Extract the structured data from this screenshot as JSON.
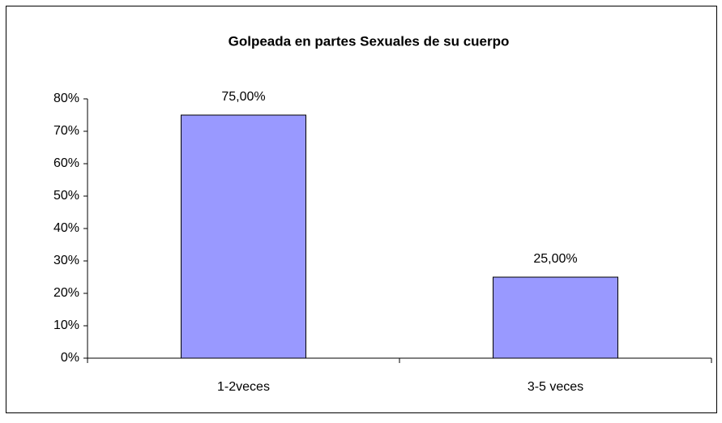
{
  "chart_data": {
    "type": "bar",
    "title": "Golpeada en partes Sexuales de su cuerpo",
    "categories": [
      "1-2veces",
      "3-5 veces"
    ],
    "values": [
      75,
      25
    ],
    "value_labels": [
      "75,00%",
      "25,00%"
    ],
    "color": "#9999ff",
    "ylim": [
      0,
      80
    ],
    "yticks": [
      {
        "value": 0,
        "label": "0%"
      },
      {
        "value": 10,
        "label": "10%"
      },
      {
        "value": 20,
        "label": "20%"
      },
      {
        "value": 30,
        "label": "30%"
      },
      {
        "value": 40,
        "label": "40%"
      },
      {
        "value": 50,
        "label": "50%"
      },
      {
        "value": 60,
        "label": "60%"
      },
      {
        "value": 70,
        "label": "70%"
      },
      {
        "value": 80,
        "label": "80%"
      }
    ],
    "grid": false
  }
}
